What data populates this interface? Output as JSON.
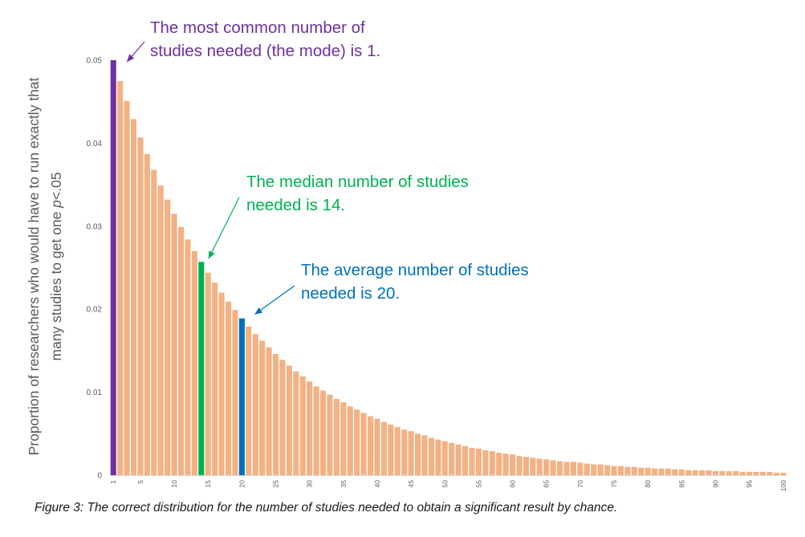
{
  "chart_data": {
    "type": "bar",
    "x": [
      1,
      2,
      3,
      4,
      5,
      6,
      7,
      8,
      9,
      10,
      11,
      12,
      13,
      14,
      15,
      16,
      17,
      18,
      19,
      20,
      21,
      22,
      23,
      24,
      25,
      26,
      27,
      28,
      29,
      30,
      31,
      32,
      33,
      34,
      35,
      36,
      37,
      38,
      39,
      40,
      41,
      42,
      43,
      44,
      45,
      46,
      47,
      48,
      49,
      50,
      51,
      52,
      53,
      54,
      55,
      56,
      57,
      58,
      59,
      60,
      61,
      62,
      63,
      64,
      65,
      66,
      67,
      68,
      69,
      70,
      71,
      72,
      73,
      74,
      75,
      76,
      77,
      78,
      79,
      80,
      81,
      82,
      83,
      84,
      85,
      86,
      87,
      88,
      89,
      90,
      91,
      92,
      93,
      94,
      95,
      96,
      97,
      98,
      99,
      100
    ],
    "values": [
      0.05,
      0.0475,
      0.0451,
      0.0429,
      0.0407,
      0.0387,
      0.0368,
      0.0349,
      0.0332,
      0.0315,
      0.0299,
      0.0284,
      0.027,
      0.0257,
      0.0244,
      0.0232,
      0.022,
      0.0209,
      0.0199,
      0.0189,
      0.0179,
      0.017,
      0.0162,
      0.0154,
      0.0146,
      0.0139,
      0.0132,
      0.0125,
      0.0119,
      0.0113,
      0.0107,
      0.0102,
      0.0097,
      0.0092,
      0.0088,
      0.0083,
      0.0079,
      0.0075,
      0.0071,
      0.0068,
      0.0064,
      0.0061,
      0.0058,
      0.0055,
      0.0053,
      0.005,
      0.0048,
      0.0045,
      0.0043,
      0.0041,
      0.0039,
      0.0037,
      0.0035,
      0.0033,
      0.0032,
      0.003,
      0.0029,
      0.0027,
      0.0026,
      0.0025,
      0.0023,
      0.0022,
      0.0021,
      0.002,
      0.0019,
      0.0018,
      0.0017,
      0.0016,
      0.0016,
      0.0015,
      0.0014,
      0.0013,
      0.0013,
      0.0012,
      0.0011,
      0.0011,
      0.001,
      0.001,
      0.0009,
      0.0009,
      0.0008,
      0.0008,
      0.0008,
      0.0007,
      0.0007,
      0.0006,
      0.0006,
      0.0006,
      0.0006,
      0.0005,
      0.0005,
      0.0005,
      0.0005,
      0.0004,
      0.0004,
      0.0004,
      0.0004,
      0.0004,
      0.0003,
      0.0003
    ],
    "highlights": [
      {
        "x": 1,
        "color": "#7030a0",
        "meaning": "mode"
      },
      {
        "x": 14,
        "color": "#00b050",
        "meaning": "median"
      },
      {
        "x": 20,
        "color": "#0070c0",
        "meaning": "average"
      }
    ],
    "bar_color": "#f4b183",
    "xticks": [
      1,
      5,
      10,
      15,
      20,
      25,
      30,
      35,
      40,
      45,
      50,
      55,
      60,
      65,
      70,
      75,
      80,
      85,
      90,
      95,
      100
    ],
    "yticks": [
      0,
      0.01,
      0.02,
      0.03,
      0.04,
      0.05
    ],
    "ytick_labels": [
      "0",
      "0.01",
      "0.02",
      "0.03",
      "0.04",
      "0.05"
    ],
    "ylim": [
      0,
      0.05
    ],
    "ylabel_line1": "Proportion of researchers who would have to run exactly that",
    "ylabel_line2_prefix": "many studies to get one ",
    "ylabel_line2_italic": "p",
    "ylabel_line2_suffix": "<.05",
    "grid": false,
    "legend": false
  },
  "annotations": {
    "mode": {
      "line1": "The most common number of",
      "line2": "studies needed (the mode) is 1.",
      "color": "#7030a0"
    },
    "median": {
      "line1": "The median number of studies",
      "line2": "needed is 14.",
      "color": "#00b050"
    },
    "average": {
      "line1": "The average number of studies",
      "line2": "needed is 20.",
      "color": "#0070c0"
    }
  },
  "caption": "Figure 3: The correct distribution for the number of studies needed to obtain a significant result by chance.",
  "colors": {
    "axis_text": "#595959",
    "axis_line": "#d9d9d9"
  }
}
